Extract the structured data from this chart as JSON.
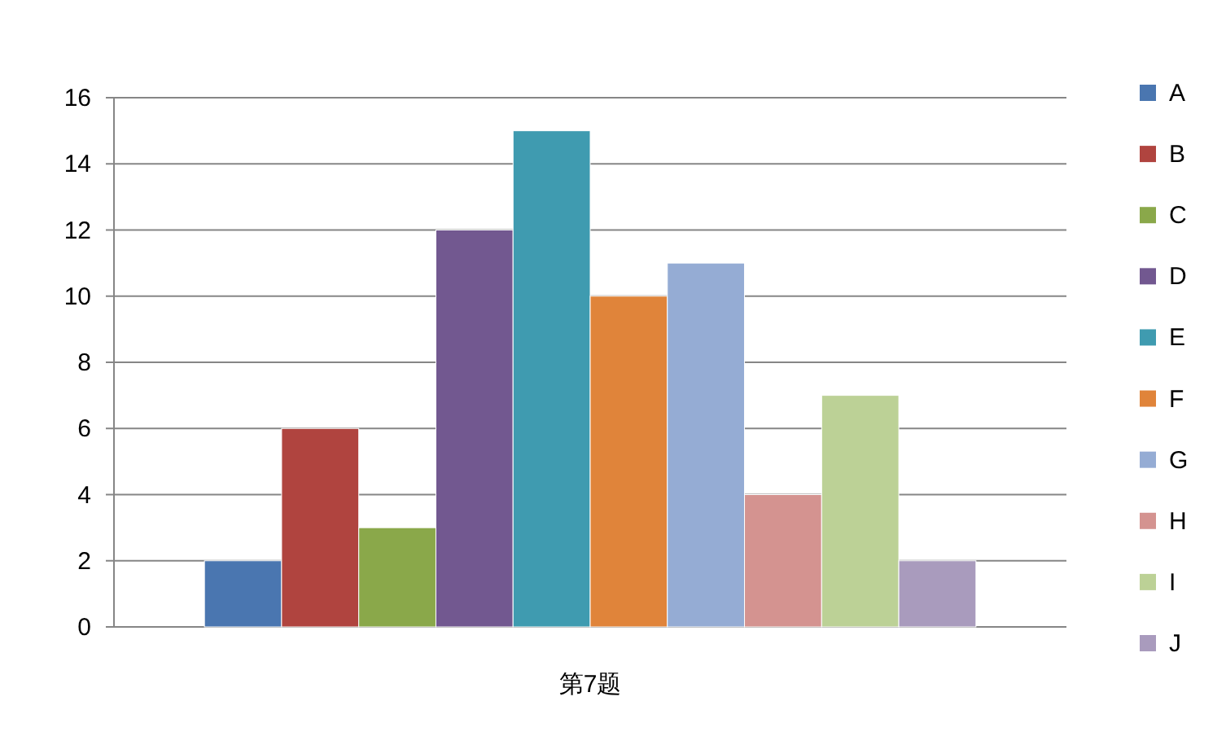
{
  "chart_data": {
    "type": "bar",
    "categories": [
      "第7题"
    ],
    "series": [
      {
        "name": "A",
        "color": "#4a76b0",
        "values": [
          2
        ]
      },
      {
        "name": "B",
        "color": "#b0443f",
        "values": [
          6
        ]
      },
      {
        "name": "C",
        "color": "#8aa84a",
        "values": [
          3
        ]
      },
      {
        "name": "D",
        "color": "#725890",
        "values": [
          12
        ]
      },
      {
        "name": "E",
        "color": "#3f9bb0",
        "values": [
          15
        ]
      },
      {
        "name": "F",
        "color": "#e0843a",
        "values": [
          10
        ]
      },
      {
        "name": "G",
        "color": "#95acd4",
        "values": [
          11
        ]
      },
      {
        "name": "H",
        "color": "#d49390",
        "values": [
          4
        ]
      },
      {
        "name": "I",
        "color": "#bcd196",
        "values": [
          7
        ]
      },
      {
        "name": "J",
        "color": "#a99bbd",
        "values": [
          2
        ]
      }
    ],
    "ylim": [
      0,
      16
    ],
    "yticks": [
      0,
      2,
      4,
      6,
      8,
      10,
      12,
      14,
      16
    ],
    "grid": "y",
    "legend": "right"
  }
}
